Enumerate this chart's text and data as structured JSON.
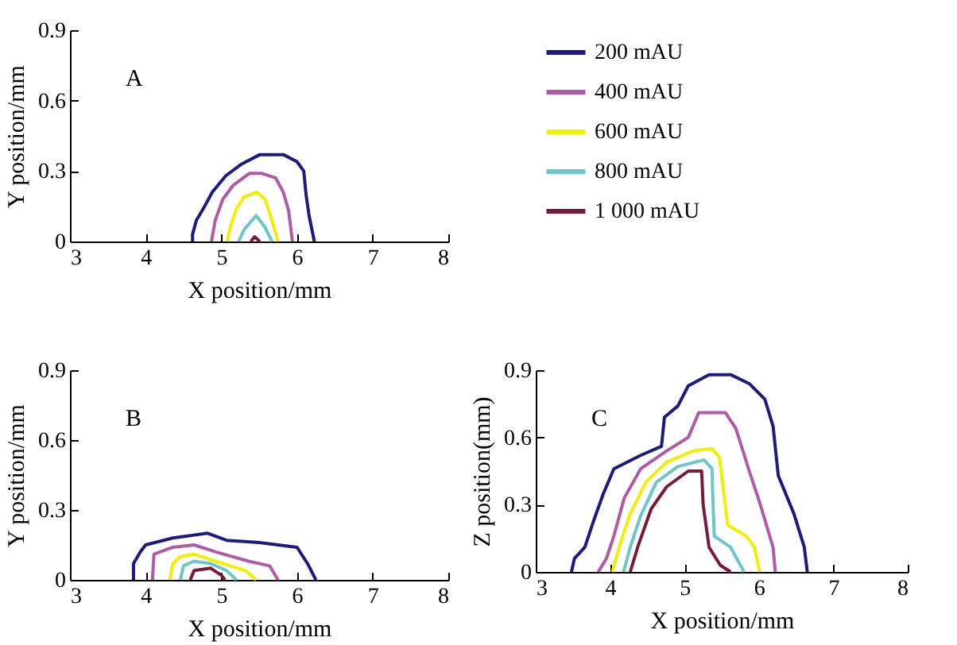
{
  "chart_data": [
    {
      "type": "line",
      "annotations": [
        "A"
      ],
      "xlabel": "X position/mm",
      "ylabel": "Y position/mm",
      "xlim": [
        3,
        8
      ],
      "xticks": [
        3,
        4,
        5,
        6,
        7,
        8
      ],
      "ylim": [
        0,
        0.9
      ],
      "yticks": [
        0,
        0.3,
        0.6,
        0.9
      ],
      "legend": "right",
      "series": [
        {
          "name": "200 mAU",
          "color": "#1c1c80",
          "x": [
            4.62,
            4.62,
            4.67,
            4.78,
            4.88,
            5.06,
            5.27,
            5.51,
            5.82,
            6.0,
            6.09,
            6.12,
            6.16,
            6.23
          ],
          "values": [
            0,
            0.03,
            0.09,
            0.15,
            0.21,
            0.28,
            0.33,
            0.37,
            0.37,
            0.34,
            0.3,
            0.2,
            0.11,
            0
          ]
        },
        {
          "name": "400 mAU",
          "color": "#b05aa8",
          "x": [
            4.87,
            4.92,
            5.02,
            5.16,
            5.37,
            5.54,
            5.72,
            5.82,
            5.89,
            5.94
          ],
          "values": [
            0,
            0.09,
            0.18,
            0.24,
            0.29,
            0.29,
            0.27,
            0.21,
            0.13,
            0
          ]
        },
        {
          "name": "600 mAU",
          "color": "#f0f000",
          "x": [
            5.08,
            5.11,
            5.2,
            5.3,
            5.47,
            5.58,
            5.67,
            5.75
          ],
          "values": [
            0,
            0.05,
            0.14,
            0.19,
            0.21,
            0.18,
            0.09,
            0
          ]
        },
        {
          "name": "800 mAU",
          "color": "#6cc8c8",
          "x": [
            5.23,
            5.3,
            5.46,
            5.58,
            5.67
          ],
          "values": [
            0,
            0.05,
            0.11,
            0.06,
            0
          ]
        },
        {
          "name": "1 000 mAU",
          "color": "#7a1a3a",
          "x": [
            5.39,
            5.44,
            5.51
          ],
          "values": [
            0,
            0.02,
            0
          ]
        }
      ]
    },
    {
      "type": "line",
      "annotations": [
        "B"
      ],
      "xlabel": "X position/mm",
      "ylabel": "Y position/mm",
      "xlim": [
        3,
        8
      ],
      "xticks": [
        3,
        4,
        5,
        6,
        7,
        8
      ],
      "ylim": [
        0,
        0.9
      ],
      "yticks": [
        0,
        0.3,
        0.6,
        0.9
      ],
      "series": [
        {
          "color": "#1c1c80",
          "x": [
            3.84,
            3.84,
            3.93,
            4.0,
            4.36,
            4.82,
            5.07,
            5.5,
            6.0,
            6.14,
            6.25
          ],
          "values": [
            0,
            0.07,
            0.12,
            0.15,
            0.18,
            0.2,
            0.17,
            0.16,
            0.14,
            0.07,
            0
          ]
        },
        {
          "color": "#b05aa8",
          "x": [
            4.09,
            4.11,
            4.36,
            4.64,
            4.93,
            5.36,
            5.64,
            5.75
          ],
          "values": [
            0,
            0.11,
            0.14,
            0.15,
            0.12,
            0.08,
            0.06,
            0
          ]
        },
        {
          "color": "#f0f000",
          "x": [
            4.32,
            4.36,
            4.46,
            4.64,
            4.93,
            5.32,
            5.46
          ],
          "values": [
            0,
            0.07,
            0.1,
            0.11,
            0.08,
            0.04,
            0
          ]
        },
        {
          "color": "#6cc8c8",
          "x": [
            4.46,
            4.5,
            4.64,
            4.86,
            5.07,
            5.2
          ],
          "values": [
            0,
            0.06,
            0.08,
            0.07,
            0.04,
            0
          ]
        },
        {
          "color": "#7a1a3a",
          "x": [
            4.59,
            4.64,
            4.86,
            5.0,
            5.05
          ],
          "values": [
            0,
            0.04,
            0.05,
            0.02,
            0
          ]
        }
      ]
    },
    {
      "type": "line",
      "annotations": [
        "C"
      ],
      "xlabel": "X position/mm",
      "ylabel": "Z position(mm)",
      "xlim": [
        3,
        8
      ],
      "xticks": [
        3,
        4,
        5,
        6,
        7,
        8
      ],
      "ylim": [
        0,
        0.9
      ],
      "yticks": [
        0,
        0.3,
        0.6,
        0.9
      ],
      "series": [
        {
          "color": "#1c1c80",
          "x": [
            3.48,
            3.52,
            3.66,
            3.78,
            3.91,
            4.05,
            4.41,
            4.69,
            4.73,
            4.91,
            5.05,
            5.33,
            5.62,
            5.87,
            6.08,
            6.19,
            6.26,
            6.47,
            6.61,
            6.65
          ],
          "values": [
            0,
            0.06,
            0.11,
            0.23,
            0.35,
            0.46,
            0.52,
            0.56,
            0.69,
            0.74,
            0.83,
            0.88,
            0.88,
            0.84,
            0.77,
            0.65,
            0.43,
            0.26,
            0.11,
            0
          ]
        },
        {
          "color": "#b05aa8",
          "x": [
            3.84,
            3.95,
            4.05,
            4.19,
            4.41,
            4.76,
            5.05,
            5.19,
            5.55,
            5.69,
            5.87,
            6.01,
            6.19,
            6.22
          ],
          "values": [
            0,
            0.06,
            0.16,
            0.33,
            0.46,
            0.54,
            0.6,
            0.71,
            0.71,
            0.64,
            0.45,
            0.31,
            0.11,
            0
          ]
        },
        {
          "color": "#f0f000",
          "x": [
            4.03,
            4.12,
            4.27,
            4.48,
            4.76,
            5.12,
            5.37,
            5.47,
            5.58,
            5.83,
            5.94,
            6.01
          ],
          "values": [
            0,
            0.11,
            0.26,
            0.4,
            0.49,
            0.54,
            0.55,
            0.51,
            0.21,
            0.16,
            0.11,
            0
          ]
        },
        {
          "color": "#6cc8c8",
          "x": [
            4.18,
            4.27,
            4.41,
            4.62,
            4.91,
            5.26,
            5.37,
            5.38,
            5.4,
            5.62,
            5.8
          ],
          "values": [
            0,
            0.11,
            0.25,
            0.4,
            0.47,
            0.5,
            0.46,
            0.33,
            0.16,
            0.11,
            0
          ]
        },
        {
          "color": "#7a1a3a",
          "x": [
            4.27,
            4.37,
            4.55,
            4.76,
            5.05,
            5.23,
            5.25,
            5.33,
            5.48,
            5.62
          ],
          "values": [
            0,
            0.11,
            0.28,
            0.38,
            0.45,
            0.45,
            0.3,
            0.11,
            0.03,
            0
          ]
        }
      ]
    }
  ]
}
